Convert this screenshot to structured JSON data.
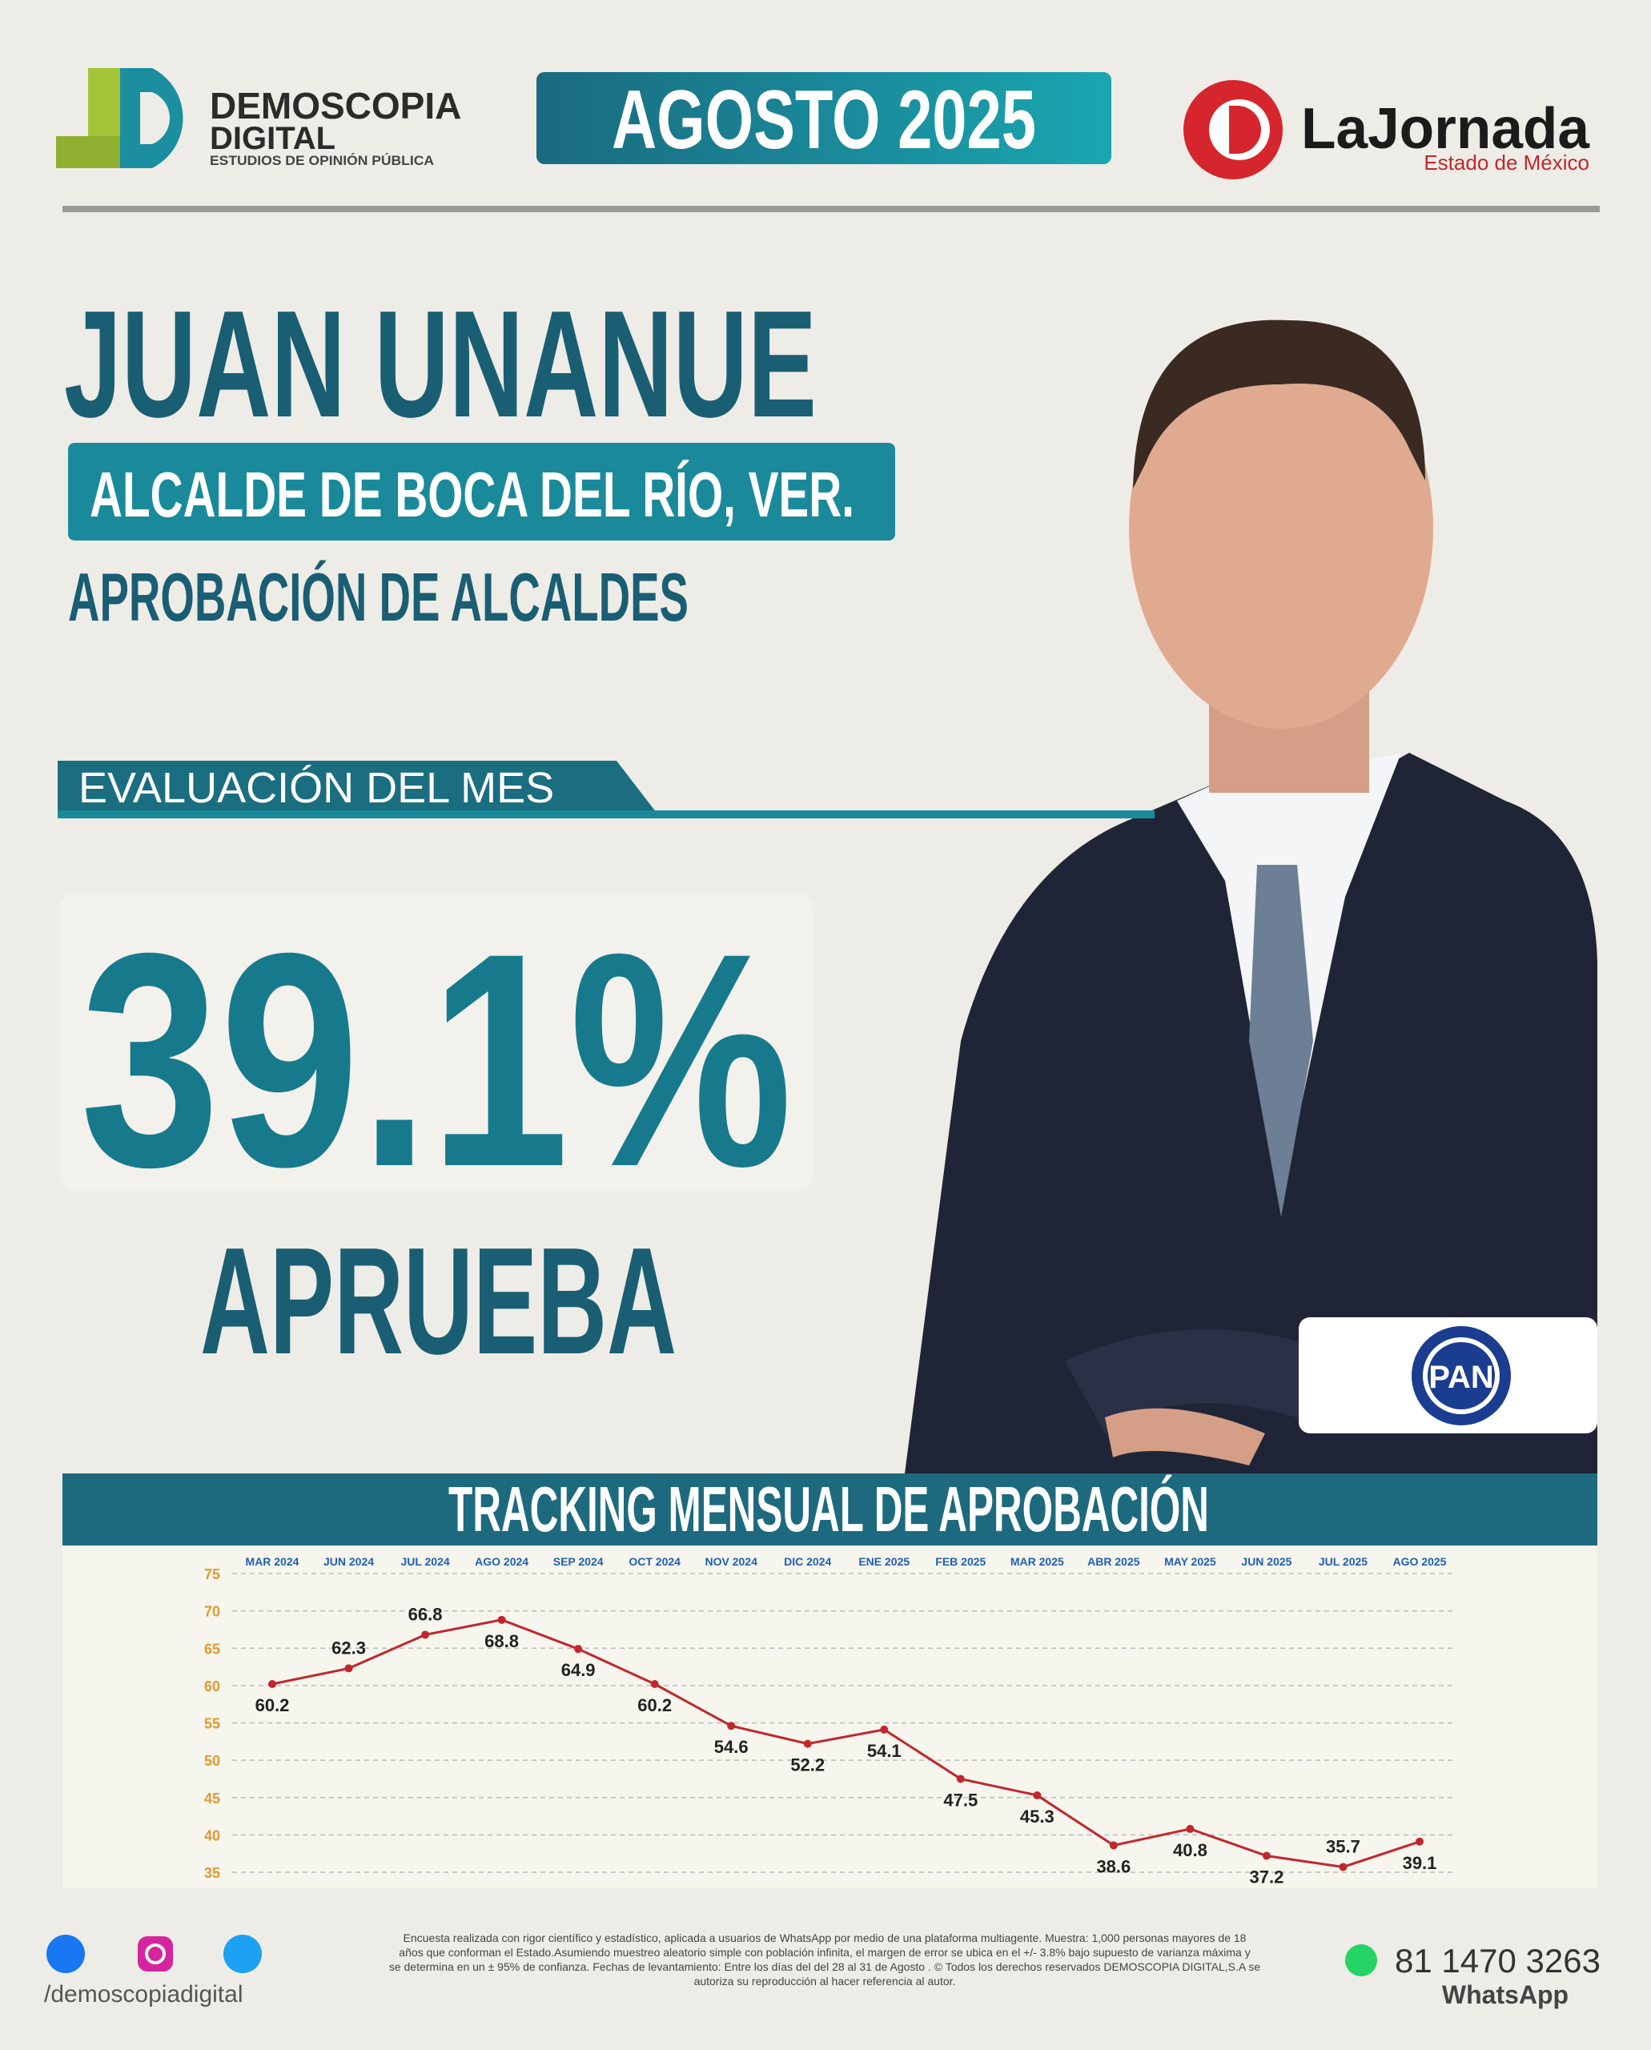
{
  "header": {
    "brand": "DEMOSCOPIA",
    "brand_line2": "DIGITAL",
    "brand_tagline": "ESTUDIOS DE OPINIÓN PÚBLICA",
    "period": "AGOSTO 2025",
    "partner": "LaJornada",
    "partner_sub": "Estado de México"
  },
  "profile": {
    "name": "JUAN UNANUE",
    "position": "ALCALDE DE BOCA DEL RÍO, VER.",
    "study": "APROBACIÓN DE ALCALDES",
    "section": "EVALUACIÓN DEL MES",
    "approval": "39.1%",
    "approval_label": "APRUEBA",
    "party": "PAN"
  },
  "chart_data": {
    "type": "line",
    "title": "TRACKING MENSUAL DE APROBACIÓN",
    "categories": [
      "MAR 2024",
      "JUN 2024",
      "JUL 2024",
      "AGO 2024",
      "SEP 2024",
      "OCT 2024",
      "NOV 2024",
      "DIC 2024",
      "ENE 2025",
      "FEB 2025",
      "MAR 2025",
      "ABR 2025",
      "MAY 2025",
      "JUN 2025",
      "JUL 2025",
      "AGO 2025"
    ],
    "values": [
      60.2,
      62.3,
      66.8,
      68.8,
      64.9,
      60.2,
      54.6,
      52.2,
      54.1,
      47.5,
      45.3,
      38.6,
      40.8,
      37.2,
      35.7,
      39.1
    ],
    "color": "#c0272d",
    "ylim": [
      35,
      75
    ],
    "yticks": [
      35,
      40,
      45,
      50,
      55,
      60,
      65,
      70,
      75
    ],
    "grid": true
  },
  "footer": {
    "social": "/demoscopiadigital",
    "disclaimer": [
      "Encuesta realizada con rigor científico y estadístico, aplicada a usuarios de WhatsApp por medio de una plataforma multiagente. Muestra: 1,000 personas mayores de 18",
      "años que conforman el Estado.Asumiendo muestreo aleatorio simple con población infinita, el margen de error se ubica en el +/- 3.8% bajo supuesto de varianza máxima y",
      "se determina en un ± 95% de confianza. Fechas de levantamiento: Entre los días del del 28 al 31 de Agosto . © Todos los derechos reservados DEMOSCOPIA DIGITAL,S.A se",
      "autoriza su reproducción al hacer referencia al autor."
    ],
    "phone": "81 1470 3263",
    "channel": "WhatsApp"
  }
}
